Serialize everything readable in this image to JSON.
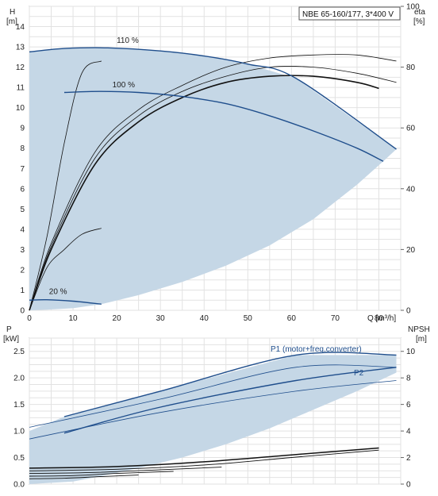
{
  "chart_data": [
    {
      "type": "line",
      "title": "NBE 65-160/177, 3*400 V",
      "xlabel": "Q [m³/h]",
      "ylabel_left": [
        "H",
        "[m]"
      ],
      "ylabel_right": [
        "eta",
        "[%]"
      ],
      "xlim": [
        0,
        85
      ],
      "ylim": [
        0,
        15
      ],
      "ylim_right": [
        0,
        100
      ],
      "xticks": [
        "0",
        "10",
        "20",
        "30",
        "40",
        "50",
        "60",
        "70",
        "80"
      ],
      "yticks": [
        "0",
        "1",
        "2",
        "3",
        "4",
        "5",
        "6",
        "7",
        "8",
        "9",
        "10",
        "11",
        "12",
        "13",
        "14"
      ],
      "yticks_right": [
        "0",
        "20",
        "40",
        "60",
        "80",
        "100"
      ],
      "grid": true,
      "colors": {
        "band": "#c5d7e6",
        "band_light": "#e6f0fa",
        "curve": "#1f4e8c",
        "eta": "#111111"
      },
      "series": [
        {
          "name": "110 %",
          "x": [
            0,
            8,
            18,
            30,
            40,
            50,
            61,
            84
          ],
          "y": [
            12.75,
            12.92,
            12.95,
            12.8,
            12.55,
            12.15,
            11.45,
            7.95
          ]
        },
        {
          "name": "100 %",
          "x": [
            8,
            16,
            25,
            35,
            45,
            55,
            65,
            75,
            81
          ],
          "y": [
            10.75,
            10.8,
            10.75,
            10.55,
            10.2,
            9.6,
            8.85,
            8.0,
            7.35
          ]
        },
        {
          "name": "20 %",
          "x": [
            0,
            4,
            10,
            16.5
          ],
          "y": [
            0.5,
            0.52,
            0.45,
            0.3
          ]
        }
      ],
      "eta_curves": [
        {
          "x": [
            0,
            5,
            15,
            25,
            35,
            45,
            55,
            65,
            75,
            80
          ],
          "y": [
            0,
            20,
            48,
            62,
            70,
            75,
            77,
            77,
            75,
            73
          ]
        },
        {
          "x": [
            0,
            5,
            15,
            25,
            35,
            45,
            55,
            65,
            75,
            84
          ],
          "y": [
            0,
            22,
            52,
            66,
            74,
            80,
            83,
            84,
            84,
            82
          ]
        },
        {
          "x": [
            0,
            5,
            15,
            25,
            35,
            45,
            55,
            65,
            75,
            84
          ],
          "y": [
            0,
            21,
            50,
            64,
            72,
            77,
            80,
            80,
            78,
            75
          ]
        },
        {
          "x": [
            0,
            4,
            8,
            12,
            16.5
          ],
          "y": [
            0,
            24,
            55,
            78,
            82
          ]
        },
        {
          "x": [
            0,
            4,
            8,
            12,
            16.5
          ],
          "y": [
            0,
            14,
            20,
            25,
            27
          ]
        }
      ],
      "band_outline": {
        "x": [
          0,
          8,
          18,
          30,
          40,
          50,
          61,
          84,
          81,
          75,
          65,
          55,
          45,
          35,
          25,
          16.5,
          10,
          4,
          0
        ],
        "y": [
          12.75,
          12.92,
          12.95,
          12.8,
          12.55,
          12.15,
          11.45,
          7.95,
          7.35,
          6.2,
          4.5,
          3.2,
          2.2,
          1.4,
          0.75,
          0.3,
          0.1,
          0.03,
          0
        ]
      }
    },
    {
      "type": "line",
      "xlabel": "",
      "ylabel_left": [
        "P",
        "[kW]"
      ],
      "ylabel_right": [
        "NPSH",
        "[m]"
      ],
      "xlim": [
        0,
        85
      ],
      "ylim": [
        0,
        2.75
      ],
      "ylim_right": [
        0,
        11
      ],
      "yticks": [
        "0.0",
        "0.5",
        "1.0",
        "1.5",
        "2.0",
        "2.5"
      ],
      "yticks_right": [
        "0",
        "2",
        "4",
        "6",
        "8",
        "10"
      ],
      "grid": true,
      "annotations": [
        "P1 (motor+freq.converter)",
        "P2"
      ],
      "series": [
        {
          "name": "P1 (motor+freq.converter)",
          "x": [
            8,
            30,
            61,
            84
          ],
          "y": [
            1.27,
            1.75,
            2.43,
            2.43
          ]
        },
        {
          "name": "P2",
          "x": [
            8,
            30,
            61,
            84
          ],
          "y": [
            0.96,
            1.45,
            1.95,
            2.2
          ]
        },
        {
          "x": [
            0,
            30,
            61,
            84
          ],
          "y": [
            1.07,
            1.6,
            2.2,
            2.2
          ]
        },
        {
          "x": [
            0,
            30,
            61,
            84
          ],
          "y": [
            0.85,
            1.35,
            1.75,
            1.95
          ]
        }
      ],
      "npsh_curves": [
        {
          "x": [
            0,
            20,
            40,
            60,
            80
          ],
          "y": [
            0.3,
            0.33,
            0.42,
            0.55,
            0.68
          ]
        },
        {
          "x": [
            0,
            20,
            40,
            60,
            80
          ],
          "y": [
            0.25,
            0.28,
            0.36,
            0.5,
            0.64
          ]
        },
        {
          "x": [
            0,
            15,
            30,
            44
          ],
          "y": [
            0.2,
            0.22,
            0.27,
            0.32
          ]
        },
        {
          "x": [
            0,
            10,
            20,
            33
          ],
          "y": [
            0.15,
            0.16,
            0.2,
            0.24
          ]
        },
        {
          "x": [
            0,
            8,
            16,
            25
          ],
          "y": [
            0.1,
            0.11,
            0.14,
            0.17
          ]
        }
      ],
      "band_outline": {
        "x": [
          0,
          8,
          61,
          84,
          84,
          75,
          65,
          55,
          45,
          35,
          25,
          16.5,
          10,
          0
        ],
        "y": [
          1.0,
          1.27,
          2.43,
          2.43,
          2.1,
          1.75,
          1.4,
          1.05,
          0.75,
          0.5,
          0.3,
          0.15,
          0.05,
          0.0
        ]
      }
    }
  ]
}
